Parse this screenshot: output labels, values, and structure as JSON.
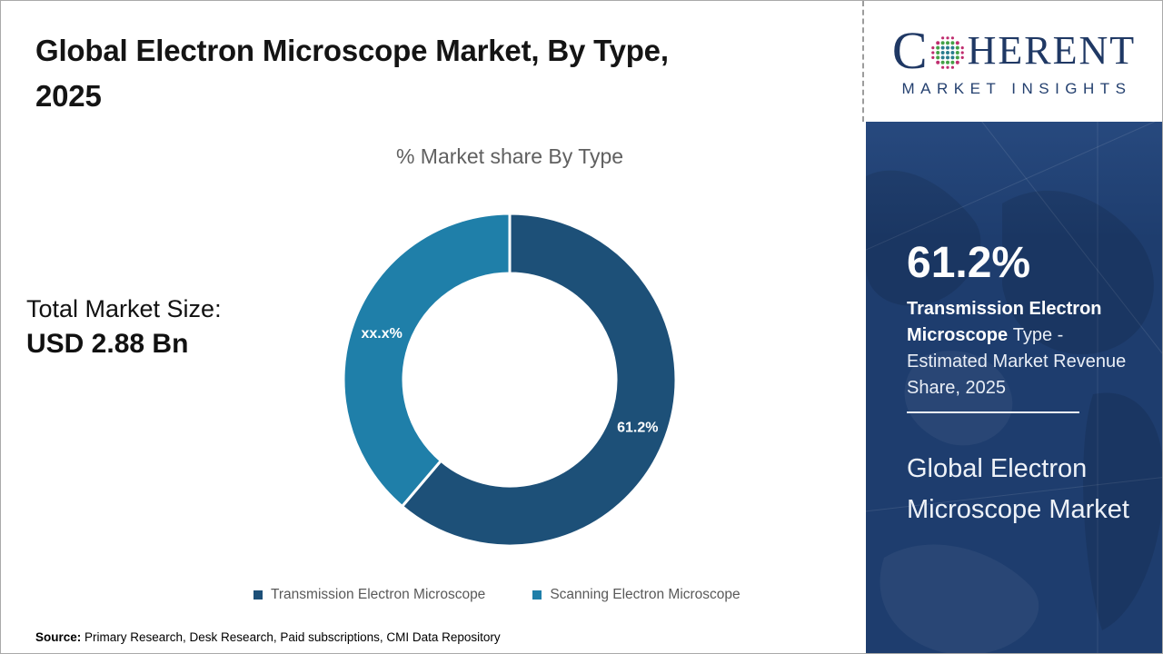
{
  "header": {
    "title_lines": [
      "Global Electron Microscope Market, By Type,",
      "2025"
    ],
    "subtitle": "% Market share By Type"
  },
  "stats": {
    "total_label": "Total Market Size:",
    "total_value": "USD 2.88 Bn"
  },
  "chart_data": {
    "type": "pie",
    "subtype": "donut",
    "title": "% Market share By Type",
    "start_angle_deg": 0,
    "direction": "clockwise",
    "legend_position": "bottom",
    "slices": [
      {
        "name": "Transmission Electron Microscope",
        "value": 61.2,
        "label": "61.2%",
        "color": "#1d5078"
      },
      {
        "name": "Scanning Electron Microscope",
        "value": 38.8,
        "label": "xx.x%",
        "color": "#1f7fa9"
      }
    ]
  },
  "sidebar": {
    "bg_color": "#1e3d6e",
    "logo": {
      "word_start": "C",
      "word_end": "HERENT",
      "tagline": "MARKET INSIGHTS",
      "brand_color": "#1f3864",
      "globe_colors": [
        "#2b7d8e",
        "#44a147",
        "#bf2d6e"
      ]
    },
    "stat_value": "61.2%",
    "stat_bold": " Transmission Electron Microscope ",
    "stat_rest": " Type - Estimated Market Revenue Share, 2025",
    "market_name": "Global Electron Microscope Market"
  },
  "footer": {
    "source_label": "Source:",
    "source_text": " Primary Research, Desk Research, Paid subscriptions, CMI Data Repository"
  }
}
